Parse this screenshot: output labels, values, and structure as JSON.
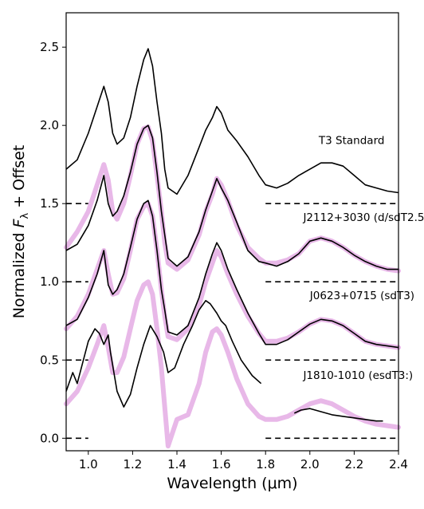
{
  "chart_data": {
    "type": "line",
    "xlabel": "Wavelength (μm)",
    "ylabel": "Normalized F_λ + Offset",
    "xlim": [
      0.9,
      2.4
    ],
    "ylim": [
      -0.08,
      2.72
    ],
    "x_ticks": [
      "1.0",
      "1.2",
      "1.4",
      "1.6",
      "1.8",
      "2.0",
      "2.2",
      "2.4"
    ],
    "y_ticks": [
      "0.0",
      "0.5",
      "1.0",
      "1.5",
      "2.0",
      "2.5"
    ],
    "grid": false,
    "legend": "none",
    "colors": {
      "spectrum": "#000000",
      "standard": "#e8b8e8",
      "baseline": "#000000"
    },
    "annotations": [
      {
        "text": "T3 Standard",
        "x": 2.04,
        "y": 1.88
      },
      {
        "text": "J2112+3030 (d/sdT2.5)",
        "x": 1.97,
        "y": 1.39
      },
      {
        "text": "J0623+0715 (sdT3)",
        "x": 2.0,
        "y": 0.89
      },
      {
        "text": "J1810-1010 (esdT3:)",
        "x": 1.97,
        "y": 0.38
      }
    ],
    "series": [
      {
        "offset": 1.5,
        "x": [
          0.9,
          0.95,
          1.0,
          1.04,
          1.07,
          1.09,
          1.11,
          1.13,
          1.16,
          1.19,
          1.22,
          1.25,
          1.27,
          1.29,
          1.31,
          1.33,
          1.345,
          1.36,
          1.4,
          1.45,
          1.5,
          1.53,
          1.56,
          1.58,
          1.6,
          1.63,
          1.67,
          1.72,
          1.77,
          1.8,
          1.85,
          1.9,
          1.95,
          2.0,
          2.05,
          2.1,
          2.15,
          2.2,
          2.25,
          2.3,
          2.35,
          2.4
        ],
        "y": [
          1.72,
          1.78,
          1.95,
          2.12,
          2.25,
          2.15,
          1.95,
          1.88,
          1.92,
          2.05,
          2.25,
          2.42,
          2.49,
          2.38,
          2.15,
          1.95,
          1.72,
          1.6,
          1.56,
          1.68,
          1.86,
          1.97,
          2.05,
          2.12,
          2.08,
          1.97,
          1.9,
          1.8,
          1.68,
          1.62,
          1.6,
          1.63,
          1.68,
          1.72,
          1.76,
          1.76,
          1.74,
          1.68,
          1.62,
          1.6,
          1.58,
          1.57
        ]
      },
      {
        "offset": 1.0,
        "x": [
          0.9,
          0.95,
          1.0,
          1.04,
          1.07,
          1.09,
          1.11,
          1.13,
          1.16,
          1.19,
          1.22,
          1.25,
          1.27,
          1.29,
          1.31,
          1.33,
          1.345,
          1.36,
          1.4,
          1.45,
          1.5,
          1.53,
          1.56,
          1.58,
          1.6,
          1.63,
          1.67,
          1.72,
          1.77,
          1.8,
          1.85,
          1.9,
          1.95,
          2.0,
          2.05,
          2.1,
          2.15,
          2.2,
          2.25,
          2.3,
          2.35,
          2.4
        ],
        "y": [
          1.2,
          1.24,
          1.36,
          1.52,
          1.68,
          1.5,
          1.42,
          1.45,
          1.55,
          1.7,
          1.88,
          1.98,
          2.0,
          1.92,
          1.7,
          1.45,
          1.3,
          1.15,
          1.1,
          1.16,
          1.32,
          1.46,
          1.58,
          1.66,
          1.6,
          1.52,
          1.38,
          1.2,
          1.13,
          1.12,
          1.1,
          1.13,
          1.18,
          1.26,
          1.28,
          1.26,
          1.22,
          1.17,
          1.13,
          1.1,
          1.08,
          1.08
        ]
      },
      {
        "offset": 0.5,
        "x": [
          0.9,
          0.95,
          1.0,
          1.04,
          1.07,
          1.09,
          1.11,
          1.13,
          1.16,
          1.19,
          1.22,
          1.25,
          1.27,
          1.29,
          1.31,
          1.33,
          1.345,
          1.36,
          1.4,
          1.45,
          1.5,
          1.53,
          1.56,
          1.58,
          1.6,
          1.63,
          1.67,
          1.72,
          1.77,
          1.8,
          1.85,
          1.9,
          1.95,
          2.0,
          2.05,
          2.1,
          2.15,
          2.2,
          2.25,
          2.3,
          2.35,
          2.4
        ],
        "y": [
          0.72,
          0.76,
          0.9,
          1.05,
          1.2,
          0.98,
          0.92,
          0.95,
          1.05,
          1.22,
          1.4,
          1.5,
          1.52,
          1.42,
          1.2,
          0.95,
          0.82,
          0.68,
          0.66,
          0.72,
          0.9,
          1.05,
          1.18,
          1.25,
          1.2,
          1.08,
          0.95,
          0.8,
          0.67,
          0.6,
          0.6,
          0.63,
          0.68,
          0.73,
          0.76,
          0.75,
          0.72,
          0.67,
          0.62,
          0.6,
          0.59,
          0.58
        ]
      },
      {
        "offset": 0.0,
        "x": [
          0.9,
          0.93,
          0.95,
          1.0,
          1.03,
          1.05,
          1.07,
          1.09,
          1.1,
          1.13,
          1.16,
          1.19,
          1.22,
          1.25,
          1.28,
          1.31,
          1.34,
          1.36,
          1.39,
          1.43,
          1.47,
          1.5,
          1.53,
          1.55,
          1.58,
          1.6,
          1.62,
          1.65,
          1.69,
          1.74,
          1.78
        ],
        "y": [
          0.3,
          0.42,
          0.35,
          0.62,
          0.7,
          0.67,
          0.6,
          0.66,
          0.55,
          0.3,
          0.2,
          0.28,
          0.45,
          0.6,
          0.72,
          0.65,
          0.55,
          0.42,
          0.45,
          0.6,
          0.72,
          0.82,
          0.88,
          0.86,
          0.8,
          0.75,
          0.72,
          0.62,
          0.5,
          0.4,
          0.35
        ]
      },
      {
        "offset": 0.0,
        "x": [
          1.93,
          1.96,
          2.0,
          2.05,
          2.1,
          2.15,
          2.2,
          2.25,
          2.3,
          2.33
        ],
        "y": [
          0.16,
          0.18,
          0.19,
          0.17,
          0.15,
          0.14,
          0.13,
          0.12,
          0.11,
          0.11
        ]
      }
    ],
    "standard_series": [
      {
        "x": [
          0.9,
          0.95,
          1.0,
          1.04,
          1.07,
          1.09,
          1.11,
          1.13,
          1.16,
          1.19,
          1.22,
          1.25,
          1.27,
          1.29,
          1.31,
          1.33,
          1.345,
          1.36,
          1.4,
          1.45,
          1.5,
          1.53,
          1.56,
          1.58,
          1.6,
          1.63,
          1.67,
          1.72,
          1.77,
          1.8,
          1.85,
          1.9,
          1.95,
          2.0,
          2.05,
          2.1,
          2.15,
          2.2,
          2.25,
          2.3,
          2.35,
          2.4
        ],
        "y": [
          1.22,
          1.32,
          1.45,
          1.62,
          1.75,
          1.65,
          1.45,
          1.4,
          1.5,
          1.68,
          1.88,
          1.98,
          1.99,
          1.9,
          1.68,
          1.45,
          1.25,
          1.12,
          1.08,
          1.14,
          1.3,
          1.45,
          1.56,
          1.66,
          1.62,
          1.52,
          1.36,
          1.22,
          1.15,
          1.12,
          1.12,
          1.14,
          1.18,
          1.26,
          1.28,
          1.26,
          1.22,
          1.17,
          1.13,
          1.1,
          1.08,
          1.07
        ]
      },
      {
        "x": [
          0.9,
          0.95,
          1.0,
          1.04,
          1.07,
          1.09,
          1.11,
          1.13,
          1.16,
          1.19,
          1.22,
          1.25,
          1.27,
          1.29,
          1.31,
          1.33,
          1.345,
          1.36,
          1.4,
          1.45,
          1.5,
          1.53,
          1.56,
          1.58,
          1.6,
          1.63,
          1.67,
          1.72,
          1.77,
          1.8,
          1.85,
          1.9,
          1.95,
          2.0,
          2.05,
          2.1,
          2.15,
          2.2,
          2.25,
          2.3,
          2.35,
          2.4
        ],
        "y": [
          0.7,
          0.78,
          0.92,
          1.08,
          1.2,
          1.05,
          0.92,
          0.93,
          1.02,
          1.2,
          1.4,
          1.48,
          1.5,
          1.42,
          1.2,
          0.95,
          0.78,
          0.65,
          0.63,
          0.7,
          0.85,
          1.0,
          1.12,
          1.2,
          1.16,
          1.05,
          0.92,
          0.78,
          0.67,
          0.62,
          0.62,
          0.64,
          0.68,
          0.73,
          0.76,
          0.75,
          0.72,
          0.67,
          0.62,
          0.6,
          0.59,
          0.58
        ]
      },
      {
        "x": [
          0.9,
          0.95,
          1.0,
          1.04,
          1.07,
          1.09,
          1.11,
          1.13,
          1.16,
          1.19,
          1.22,
          1.25,
          1.27,
          1.29,
          1.31,
          1.33,
          1.345,
          1.36,
          1.4,
          1.45,
          1.5,
          1.53,
          1.56,
          1.58,
          1.6,
          1.63,
          1.67,
          1.72,
          1.77,
          1.8,
          1.85,
          1.9,
          1.95,
          2.0,
          2.05,
          2.1,
          2.15,
          2.2,
          2.25,
          2.3,
          2.35,
          2.4
        ],
        "y": [
          0.22,
          0.3,
          0.45,
          0.6,
          0.72,
          0.58,
          0.42,
          0.42,
          0.52,
          0.7,
          0.88,
          0.98,
          1.0,
          0.92,
          0.7,
          0.45,
          0.2,
          -0.05,
          0.12,
          0.15,
          0.35,
          0.55,
          0.68,
          0.7,
          0.66,
          0.55,
          0.38,
          0.22,
          0.14,
          0.12,
          0.12,
          0.14,
          0.18,
          0.22,
          0.24,
          0.22,
          0.18,
          0.14,
          0.11,
          0.09,
          0.08,
          0.07
        ]
      }
    ]
  }
}
